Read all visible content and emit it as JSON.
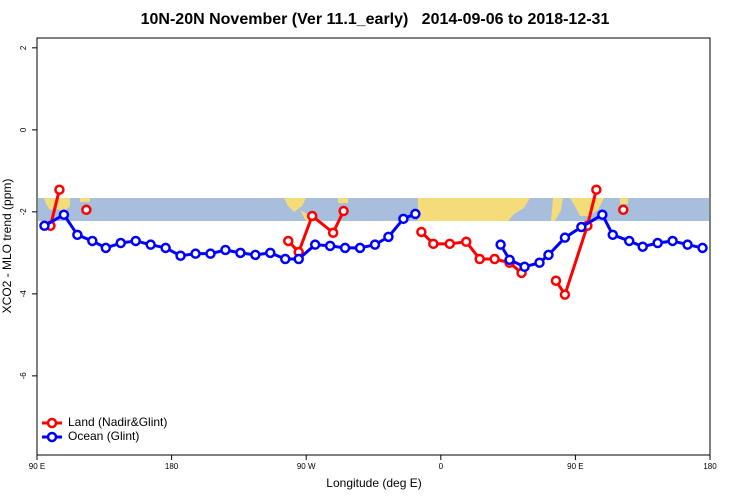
{
  "chart_data": {
    "type": "line",
    "title": "10N-20N November (Ver 11.1_early)   2014-09-06 to 2018-12-31",
    "x_label": "Longitude (deg E)",
    "y_label": "XCO2 - MLO trend (ppm)",
    "xlim": [
      90,
      540
    ],
    "xticks": [
      {
        "value": 90,
        "label": "90 E"
      },
      180,
      {
        "value": 270,
        "label": "90 W"
      },
      {
        "value": 360,
        "label": "0"
      },
      {
        "value": 450,
        "label": "90 E"
      },
      {
        "value": 540,
        "label": "180"
      }
    ],
    "ylim": [
      -7.93,
      2.24
    ],
    "yticks": [
      -6,
      -4,
      -2,
      0,
      2
    ],
    "legend": "bottom-left",
    "series": [
      {
        "name": "Land (Nadir&Glint)",
        "color": "#ff0000",
        "x": [
          99,
          105,
          null,
          123,
          null,
          258,
          265,
          274,
          288,
          295,
          null,
          347,
          355,
          366,
          377,
          386,
          396,
          406,
          414,
          null,
          437,
          443,
          458,
          464,
          null,
          482
        ],
        "values": [
          -2.34,
          -1.46,
          null,
          -1.95,
          null,
          -2.71,
          -2.98,
          -2.1,
          -2.51,
          -1.98,
          null,
          -2.49,
          -2.78,
          -2.78,
          -2.73,
          -3.15,
          -3.15,
          -3.24,
          -3.49,
          null,
          -3.68,
          -4.02,
          -2.34,
          -1.46,
          null,
          -1.95
        ]
      },
      {
        "name": "Ocean (Glint)",
        "color": "#0000ff",
        "x": [
          95,
          108,
          117,
          127,
          136,
          146,
          156,
          166,
          176,
          186,
          196,
          206,
          216,
          226,
          236,
          246,
          256,
          265,
          276,
          286,
          296,
          306,
          316,
          325,
          335,
          343,
          null,
          400,
          406,
          416,
          426,
          432,
          443,
          454,
          468,
          475,
          486,
          495,
          505,
          515,
          525,
          535
        ],
        "values": [
          -2.34,
          -2.07,
          -2.56,
          -2.71,
          -2.88,
          -2.76,
          -2.71,
          -2.8,
          -2.88,
          -3.07,
          -3.02,
          -3.02,
          -2.93,
          -3.0,
          -3.05,
          -3.0,
          -3.15,
          -3.15,
          -2.8,
          -2.83,
          -2.88,
          -2.88,
          -2.8,
          -2.61,
          -2.17,
          -2.05,
          null,
          -2.8,
          -3.17,
          -3.34,
          -3.24,
          -3.05,
          -2.63,
          -2.37,
          -2.07,
          -2.56,
          -2.71,
          -2.85,
          -2.76,
          -2.71,
          -2.8,
          -2.88
        ]
      }
    ]
  }
}
